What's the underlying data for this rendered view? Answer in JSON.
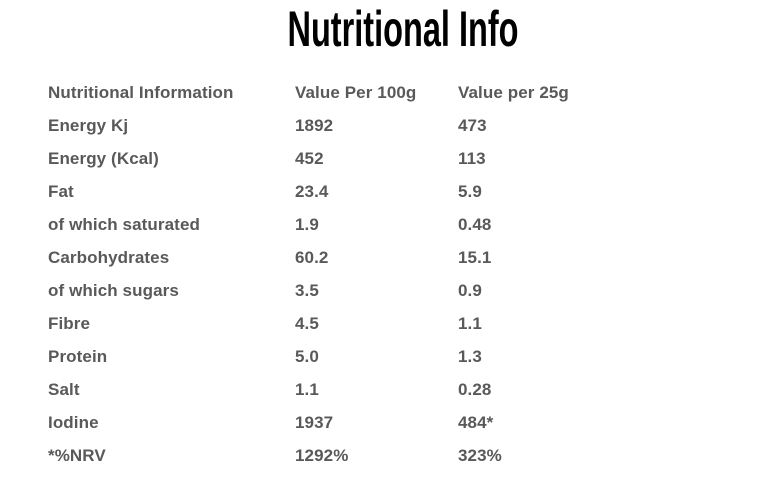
{
  "page": {
    "title": "Nutritional Info"
  },
  "colors": {
    "background": "#ffffff",
    "title_text": "#000000",
    "table_text": "#595959"
  },
  "table": {
    "headers": {
      "name": "Nutritional Information",
      "per100g": "Value Per 100g",
      "per25g": "Value per 25g"
    },
    "rows": [
      {
        "name": "Energy Kj",
        "per100g": "1892",
        "per25g": "473"
      },
      {
        "name": "Energy (Kcal)",
        "per100g": "452",
        "per25g": "113"
      },
      {
        "name": "Fat",
        "per100g": "23.4",
        "per25g": "5.9"
      },
      {
        "name": "of which saturated",
        "per100g": "1.9",
        "per25g": "0.48"
      },
      {
        "name": "Carbohydrates",
        "per100g": "60.2",
        "per25g": "15.1"
      },
      {
        "name": "of which sugars",
        "per100g": "3.5",
        "per25g": "0.9"
      },
      {
        "name": "Fibre",
        "per100g": "4.5",
        "per25g": "1.1"
      },
      {
        "name": "Protein",
        "per100g": "5.0",
        "per25g": "1.3"
      },
      {
        "name": "Salt",
        "per100g": "1.1",
        "per25g": "0.28"
      },
      {
        "name": "Iodine",
        "per100g": "1937",
        "per25g": "484*"
      },
      {
        "name": "*%NRV",
        "per100g": "1292%",
        "per25g": "323%"
      }
    ]
  }
}
